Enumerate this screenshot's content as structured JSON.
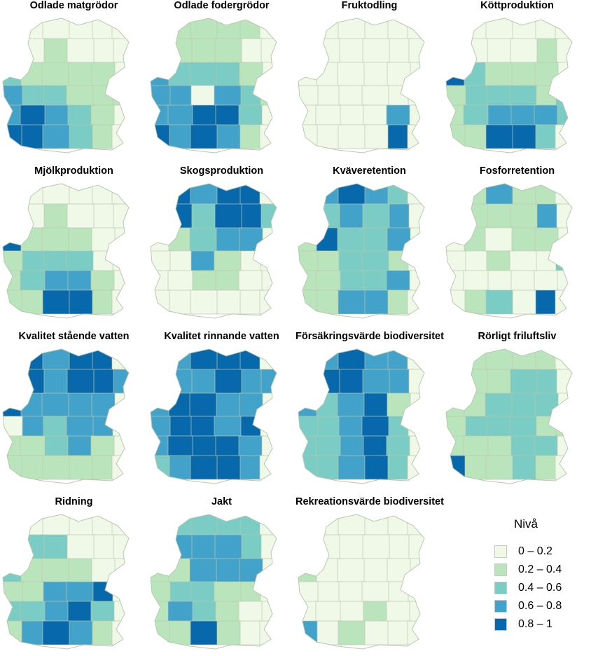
{
  "legend": {
    "title": "Nivå",
    "items": [
      {
        "label": "0 – 0.2",
        "color": "#f0f9e8"
      },
      {
        "label": "0.2 – 0.4",
        "color": "#bae4bc"
      },
      {
        "label": "0.4 – 0.6",
        "color": "#7bccc4"
      },
      {
        "label": "0.6 – 0.8",
        "color": "#43a2ca"
      },
      {
        "label": "0.8 – 1",
        "color": "#0868ac"
      }
    ]
  },
  "maps": [
    {
      "title": "Odlade matgrödor",
      "levels": [
        0,
        0,
        0,
        0,
        0,
        0,
        0,
        0,
        1,
        0,
        0,
        0,
        2,
        1,
        1,
        1,
        1,
        0,
        3,
        2,
        2,
        1,
        1,
        1,
        3,
        4,
        3,
        2,
        1,
        0,
        4,
        4,
        3,
        2,
        1,
        0
      ]
    },
    {
      "title": "Odlade fodergrödor",
      "levels": [
        0,
        1,
        1,
        1,
        1,
        0,
        0,
        1,
        1,
        1,
        0,
        0,
        3,
        2,
        2,
        2,
        1,
        0,
        3,
        3,
        0,
        3,
        2,
        1,
        3,
        3,
        4,
        4,
        2,
        0,
        4,
        3,
        4,
        3,
        1,
        0
      ]
    },
    {
      "title": "Fruktodling",
      "levels": [
        0,
        0,
        0,
        0,
        0,
        0,
        0,
        0,
        0,
        0,
        0,
        0,
        0,
        0,
        0,
        0,
        0,
        0,
        0,
        0,
        0,
        0,
        0,
        0,
        0,
        0,
        0,
        0,
        3,
        0,
        0,
        0,
        0,
        0,
        4,
        0
      ]
    },
    {
      "title": "Köttproduktion",
      "levels": [
        0,
        0,
        0,
        0,
        0,
        0,
        0,
        0,
        0,
        0,
        1,
        0,
        4,
        2,
        1,
        1,
        1,
        0,
        1,
        2,
        2,
        2,
        1,
        2,
        1,
        2,
        3,
        3,
        3,
        2,
        1,
        1,
        4,
        4,
        2,
        0
      ]
    },
    {
      "title": "Mjölkproduktion",
      "levels": [
        0,
        0,
        0,
        0,
        0,
        0,
        0,
        0,
        1,
        0,
        0,
        0,
        4,
        1,
        1,
        1,
        0,
        0,
        1,
        2,
        2,
        2,
        0,
        0,
        1,
        2,
        3,
        3,
        1,
        0,
        1,
        1,
        4,
        4,
        1,
        0
      ]
    },
    {
      "title": "Skogsproduktion",
      "levels": [
        0,
        4,
        3,
        4,
        4,
        0,
        0,
        4,
        2,
        4,
        4,
        2,
        0,
        1,
        2,
        3,
        3,
        0,
        0,
        0,
        3,
        1,
        0,
        0,
        0,
        0,
        1,
        1,
        0,
        0,
        0,
        0,
        0,
        0,
        0,
        0
      ]
    },
    {
      "title": "Kväveretention",
      "levels": [
        0,
        3,
        4,
        3,
        2,
        0,
        0,
        2,
        3,
        2,
        3,
        0,
        1,
        4,
        2,
        2,
        3,
        0,
        1,
        1,
        2,
        2,
        1,
        0,
        1,
        1,
        2,
        2,
        3,
        0,
        1,
        1,
        3,
        3,
        1,
        0
      ]
    },
    {
      "title": "Fosforretention",
      "levels": [
        0,
        1,
        3,
        1,
        1,
        0,
        0,
        1,
        1,
        1,
        3,
        0,
        0,
        1,
        0,
        1,
        1,
        0,
        0,
        0,
        1,
        0,
        0,
        2,
        0,
        0,
        0,
        0,
        0,
        0,
        0,
        1,
        2,
        0,
        4,
        0
      ]
    },
    {
      "title": "Kvalitet stående vatten",
      "levels": [
        0,
        4,
        3,
        4,
        4,
        0,
        0,
        4,
        3,
        4,
        4,
        3,
        4,
        3,
        3,
        3,
        3,
        0,
        0,
        3,
        2,
        3,
        3,
        0,
        1,
        1,
        2,
        3,
        1,
        0,
        1,
        1,
        1,
        1,
        1,
        0
      ]
    },
    {
      "title": "Kvalitet rinnande vatten",
      "levels": [
        0,
        3,
        4,
        4,
        4,
        0,
        0,
        3,
        3,
        4,
        3,
        3,
        3,
        4,
        4,
        3,
        3,
        0,
        3,
        4,
        4,
        3,
        4,
        0,
        3,
        4,
        4,
        4,
        3,
        0,
        2,
        3,
        4,
        4,
        3,
        0
      ]
    },
    {
      "title": "Försäkringsvärde biodiversitet",
      "levels": [
        0,
        3,
        4,
        3,
        3,
        0,
        0,
        4,
        4,
        3,
        3,
        0,
        3,
        2,
        3,
        4,
        1,
        0,
        2,
        2,
        3,
        4,
        2,
        0,
        2,
        2,
        3,
        4,
        2,
        0,
        2,
        2,
        3,
        4,
        2,
        0
      ]
    },
    {
      "title": "Rörligt friluftsliv",
      "levels": [
        0,
        1,
        1,
        1,
        1,
        0,
        0,
        1,
        1,
        2,
        2,
        0,
        1,
        1,
        2,
        2,
        2,
        0,
        1,
        2,
        2,
        2,
        1,
        1,
        1,
        1,
        1,
        2,
        2,
        0,
        4,
        1,
        1,
        2,
        1,
        0
      ]
    },
    {
      "title": "Ridning",
      "levels": [
        0,
        0,
        0,
        0,
        0,
        0,
        0,
        2,
        2,
        0,
        0,
        0,
        2,
        1,
        1,
        1,
        0,
        0,
        1,
        1,
        3,
        3,
        4,
        0,
        2,
        2,
        3,
        4,
        2,
        0,
        1,
        3,
        4,
        3,
        1,
        0
      ]
    },
    {
      "title": "Jakt",
      "levels": [
        0,
        2,
        2,
        2,
        2,
        0,
        0,
        3,
        3,
        3,
        2,
        0,
        1,
        1,
        3,
        3,
        3,
        0,
        1,
        2,
        2,
        1,
        1,
        0,
        1,
        3,
        2,
        1,
        0,
        0,
        1,
        1,
        4,
        1,
        0,
        0
      ]
    },
    {
      "title": "Rekreationsvärde biodiversitet",
      "levels": [
        0,
        0,
        0,
        0,
        0,
        0,
        0,
        0,
        0,
        0,
        0,
        0,
        1,
        0,
        0,
        0,
        0,
        0,
        0,
        0,
        0,
        0,
        0,
        0,
        0,
        0,
        0,
        1,
        0,
        0,
        3,
        0,
        1,
        0,
        0,
        0
      ]
    }
  ]
}
